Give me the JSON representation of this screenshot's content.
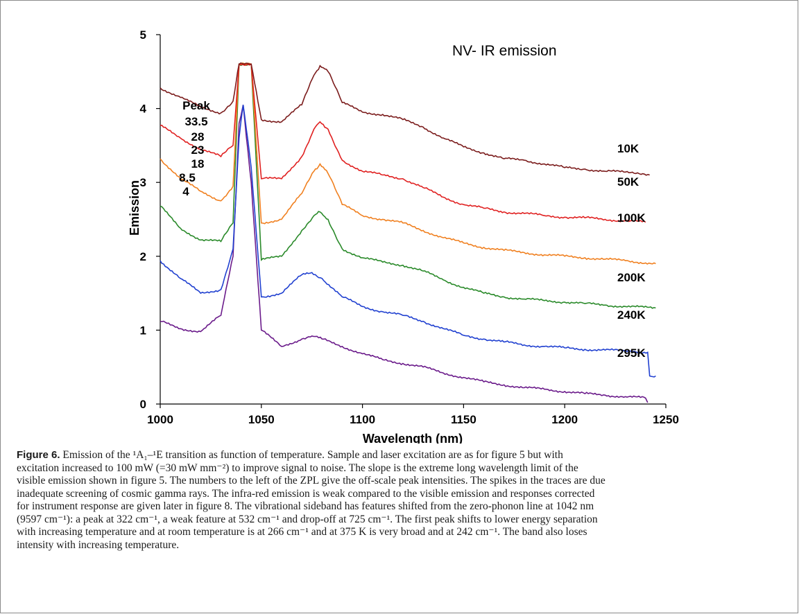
{
  "chart_data": {
    "type": "line",
    "title": "NV- IR emission",
    "xlabel": "Wavelength (nm)",
    "ylabel": "Emission",
    "xlim": [
      1000,
      1250
    ],
    "ylim": [
      0,
      5
    ],
    "xticks": [
      "1000",
      "1050",
      "1100",
      "1150",
      "1200",
      "1250"
    ],
    "yticks": [
      "0",
      "1",
      "2",
      "3",
      "4",
      "5"
    ],
    "peak_label": "Peak",
    "series": [
      {
        "name": "10K",
        "peak": "33.5",
        "color": "#7b1c1c",
        "x": [
          1000,
          1010,
          1020,
          1030,
          1036,
          1039,
          1045,
          1050,
          1060,
          1070,
          1076,
          1079,
          1083,
          1090,
          1100,
          1110,
          1120,
          1130,
          1140,
          1150,
          1160,
          1170,
          1180,
          1190,
          1200,
          1210,
          1220,
          1230,
          1242
        ],
        "y": [
          4.28,
          4.15,
          4.02,
          3.94,
          4.1,
          4.6,
          4.6,
          3.85,
          3.82,
          4.05,
          4.45,
          4.58,
          4.5,
          4.08,
          3.95,
          3.92,
          3.85,
          3.75,
          3.6,
          3.48,
          3.4,
          3.32,
          3.3,
          3.25,
          3.2,
          3.18,
          3.15,
          3.14,
          3.1
        ]
      },
      {
        "name": "50K",
        "peak": "28",
        "color": "#e02020",
        "x": [
          1000,
          1010,
          1020,
          1030,
          1036,
          1039,
          1045,
          1050,
          1060,
          1070,
          1076,
          1079,
          1083,
          1090,
          1100,
          1110,
          1120,
          1130,
          1140,
          1150,
          1160,
          1170,
          1180,
          1190,
          1200,
          1210,
          1220,
          1230,
          1240
        ],
        "y": [
          3.77,
          3.6,
          3.45,
          3.35,
          3.5,
          4.6,
          4.6,
          3.05,
          3.05,
          3.35,
          3.72,
          3.82,
          3.72,
          3.3,
          3.15,
          3.1,
          3.05,
          2.93,
          2.8,
          2.7,
          2.65,
          2.6,
          2.58,
          2.55,
          2.53,
          2.52,
          2.5,
          2.48,
          2.46
        ]
      },
      {
        "name": "100K",
        "peak": "23",
        "color": "#f08020",
        "x": [
          1000,
          1010,
          1020,
          1030,
          1036,
          1039,
          1045,
          1050,
          1060,
          1070,
          1076,
          1079,
          1083,
          1090,
          1100,
          1110,
          1120,
          1130,
          1140,
          1150,
          1160,
          1170,
          1180,
          1190,
          1200,
          1210,
          1220,
          1230,
          1245
        ],
        "y": [
          3.32,
          3.05,
          2.88,
          2.75,
          2.95,
          4.6,
          4.6,
          2.45,
          2.5,
          2.85,
          3.15,
          3.25,
          3.12,
          2.7,
          2.55,
          2.5,
          2.45,
          2.35,
          2.25,
          2.18,
          2.12,
          2.08,
          2.05,
          2.02,
          2.0,
          1.98,
          1.96,
          1.94,
          1.9
        ]
      },
      {
        "name": "200K",
        "peak": "18",
        "color": "#2a8a2a",
        "x": [
          1000,
          1010,
          1020,
          1030,
          1036,
          1039,
          1045,
          1050,
          1060,
          1070,
          1076,
          1079,
          1083,
          1090,
          1100,
          1110,
          1120,
          1130,
          1140,
          1150,
          1160,
          1170,
          1180,
          1190,
          1200,
          1210,
          1220,
          1230,
          1245
        ],
        "y": [
          2.68,
          2.38,
          2.22,
          2.2,
          2.45,
          4.6,
          4.6,
          1.95,
          2.0,
          2.35,
          2.55,
          2.6,
          2.5,
          2.1,
          1.98,
          1.92,
          1.88,
          1.8,
          1.68,
          1.58,
          1.5,
          1.45,
          1.42,
          1.4,
          1.38,
          1.36,
          1.34,
          1.32,
          1.3
        ]
      },
      {
        "name": "240K",
        "peak": "8.5",
        "color": "#2040d0",
        "x": [
          1000,
          1010,
          1020,
          1030,
          1036,
          1039,
          1041,
          1045,
          1050,
          1060,
          1070,
          1075,
          1080,
          1090,
          1100,
          1110,
          1120,
          1130,
          1140,
          1150,
          1160,
          1170,
          1180,
          1190,
          1200,
          1210,
          1220,
          1230,
          1241,
          1242,
          1245
        ],
        "y": [
          1.94,
          1.7,
          1.5,
          1.55,
          2.1,
          3.6,
          4.05,
          3.2,
          1.45,
          1.5,
          1.75,
          1.78,
          1.7,
          1.45,
          1.32,
          1.25,
          1.2,
          1.12,
          1.02,
          0.93,
          0.88,
          0.84,
          0.8,
          0.78,
          0.76,
          0.74,
          0.73,
          0.72,
          0.7,
          0.38,
          0.38
        ]
      },
      {
        "name": "295K",
        "peak": "4",
        "color": "#6a1a8a",
        "x": [
          1000,
          1010,
          1020,
          1030,
          1036,
          1039,
          1041,
          1045,
          1050,
          1060,
          1070,
          1075,
          1080,
          1090,
          1100,
          1110,
          1120,
          1130,
          1140,
          1150,
          1160,
          1170,
          1180,
          1190,
          1200,
          1210,
          1220,
          1230,
          1240,
          1241
        ],
        "y": [
          1.12,
          1.02,
          0.98,
          1.2,
          2.0,
          3.8,
          4.05,
          3.0,
          1.0,
          0.78,
          0.88,
          0.92,
          0.88,
          0.78,
          0.68,
          0.6,
          0.55,
          0.5,
          0.42,
          0.36,
          0.3,
          0.26,
          0.22,
          0.2,
          0.17,
          0.14,
          0.12,
          0.1,
          0.08,
          0.02
        ]
      }
    ]
  },
  "caption": {
    "label": "Figure 6.",
    "lines": [
      " Emission of the ¹A₁–¹E transition as function of temperature. Sample and laser excitation are as for figure 5 but with",
      "excitation increased to 100 mW (=30 mW mm⁻²) to improve signal to noise. The slope is the extreme long wavelength limit of the",
      "visible emission shown in figure 5. The numbers to the left of the ZPL give the off-scale peak intensities. The spikes in the traces are due",
      "inadequate screening of cosmic gamma rays. The infra-red emission is weak compared to the visible emission and responses corrected",
      "for instrument response are given later in figure 8. The vibrational sideband has features shifted from the zero-phonon line at 1042 nm",
      "(9597 cm⁻¹): a peak at 322 cm⁻¹, a weak feature at 532 cm⁻¹ and drop-off at 725 cm⁻¹. The first peak shifts to lower energy separation",
      "with increasing temperature and at room temperature is at 266 cm⁻¹ and at 375 K is very broad and at 242 cm⁻¹. The band also loses",
      "intensity with increasing temperature."
    ]
  },
  "colors": {
    "link": "#1f77b4",
    "frame": "#8a8a8a"
  }
}
